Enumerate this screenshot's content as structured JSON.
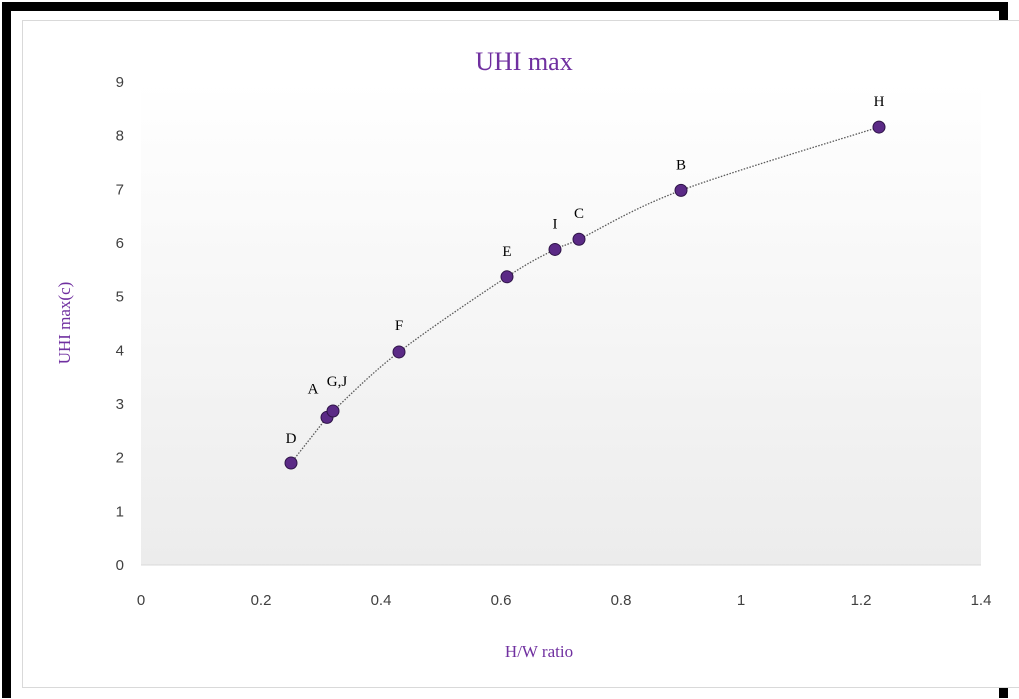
{
  "chart_data": {
    "type": "scatter",
    "title": "UHI max",
    "xlabel": "H/W ratio",
    "ylabel": "UHI max(c)",
    "xlim": [
      0,
      1.4
    ],
    "ylim": [
      0,
      9
    ],
    "xticks": [
      "0",
      "0.2",
      "0.4",
      "0.6",
      "0.8",
      "1",
      "1.2",
      "1.4"
    ],
    "yticks": [
      "0",
      "1",
      "2",
      "3",
      "4",
      "5",
      "6",
      "7",
      "8",
      "9"
    ],
    "grid": false,
    "legend": "none",
    "trendline": "smooth dotted curve through points",
    "points": [
      {
        "label": "D",
        "x": 0.25,
        "y": 1.9
      },
      {
        "label": "A",
        "x": 0.31,
        "y": 2.75
      },
      {
        "label": "G,J",
        "x": 0.32,
        "y": 2.87
      },
      {
        "label": "F",
        "x": 0.43,
        "y": 3.97
      },
      {
        "label": "E",
        "x": 0.61,
        "y": 5.37
      },
      {
        "label": "I",
        "x": 0.69,
        "y": 5.88
      },
      {
        "label": "C",
        "x": 0.73,
        "y": 6.07
      },
      {
        "label": "B",
        "x": 0.9,
        "y": 6.98
      },
      {
        "label": "H",
        "x": 1.23,
        "y": 8.16
      }
    ],
    "colors": {
      "title": "#7030a0",
      "axis_titles": "#7030a0",
      "marker_fill": "#5b2a86",
      "marker_stroke": "#2e1447",
      "trendline": "#595959",
      "plot_gradient_top": "#ffffff",
      "plot_gradient_bottom": "#ececec"
    }
  }
}
